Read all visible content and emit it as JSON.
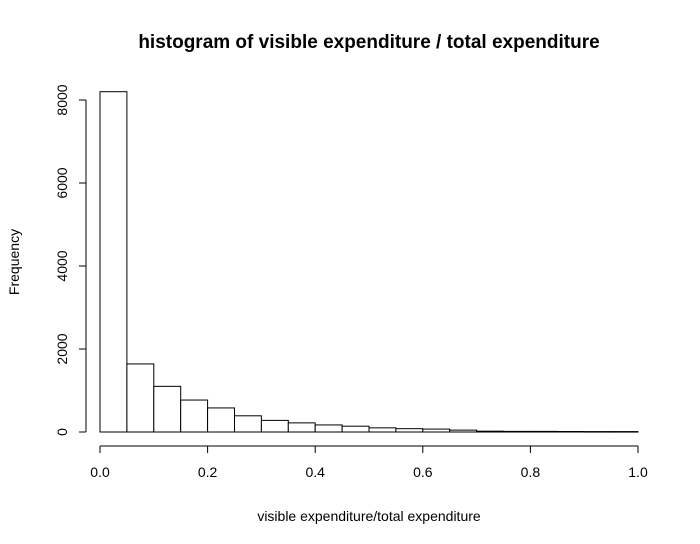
{
  "chart_data": {
    "type": "bar",
    "title": "histogram of visible expenditure / total expenditure",
    "xlabel": "visible expenditure/total expenditure",
    "ylabel": "Frequency",
    "xlim": [
      0,
      1
    ],
    "ylim": [
      0,
      8200
    ],
    "x_ticks": [
      0,
      0.2,
      0.4,
      0.6,
      0.8,
      1.0
    ],
    "x_tick_labels": [
      "0.0",
      "0.2",
      "0.4",
      "0.6",
      "0.8",
      "1.0"
    ],
    "y_ticks": [
      0,
      2000,
      4000,
      6000,
      8000
    ],
    "y_tick_labels": [
      "0",
      "2000",
      "4000",
      "6000",
      "8000"
    ],
    "bin_width": 0.05,
    "bins": [
      {
        "start": 0.0,
        "end": 0.05,
        "value": 8200
      },
      {
        "start": 0.05,
        "end": 0.1,
        "value": 1640
      },
      {
        "start": 0.1,
        "end": 0.15,
        "value": 1100
      },
      {
        "start": 0.15,
        "end": 0.2,
        "value": 770
      },
      {
        "start": 0.2,
        "end": 0.25,
        "value": 580
      },
      {
        "start": 0.25,
        "end": 0.3,
        "value": 390
      },
      {
        "start": 0.3,
        "end": 0.35,
        "value": 280
      },
      {
        "start": 0.35,
        "end": 0.4,
        "value": 220
      },
      {
        "start": 0.4,
        "end": 0.45,
        "value": 170
      },
      {
        "start": 0.45,
        "end": 0.5,
        "value": 140
      },
      {
        "start": 0.5,
        "end": 0.55,
        "value": 100
      },
      {
        "start": 0.55,
        "end": 0.6,
        "value": 80
      },
      {
        "start": 0.6,
        "end": 0.65,
        "value": 70
      },
      {
        "start": 0.65,
        "end": 0.7,
        "value": 45
      },
      {
        "start": 0.7,
        "end": 0.75,
        "value": 20
      },
      {
        "start": 0.75,
        "end": 0.8,
        "value": 15
      },
      {
        "start": 0.8,
        "end": 0.85,
        "value": 15
      },
      {
        "start": 0.85,
        "end": 0.9,
        "value": 12
      },
      {
        "start": 0.9,
        "end": 0.95,
        "value": 10
      },
      {
        "start": 0.95,
        "end": 1.0,
        "value": 10
      }
    ]
  }
}
